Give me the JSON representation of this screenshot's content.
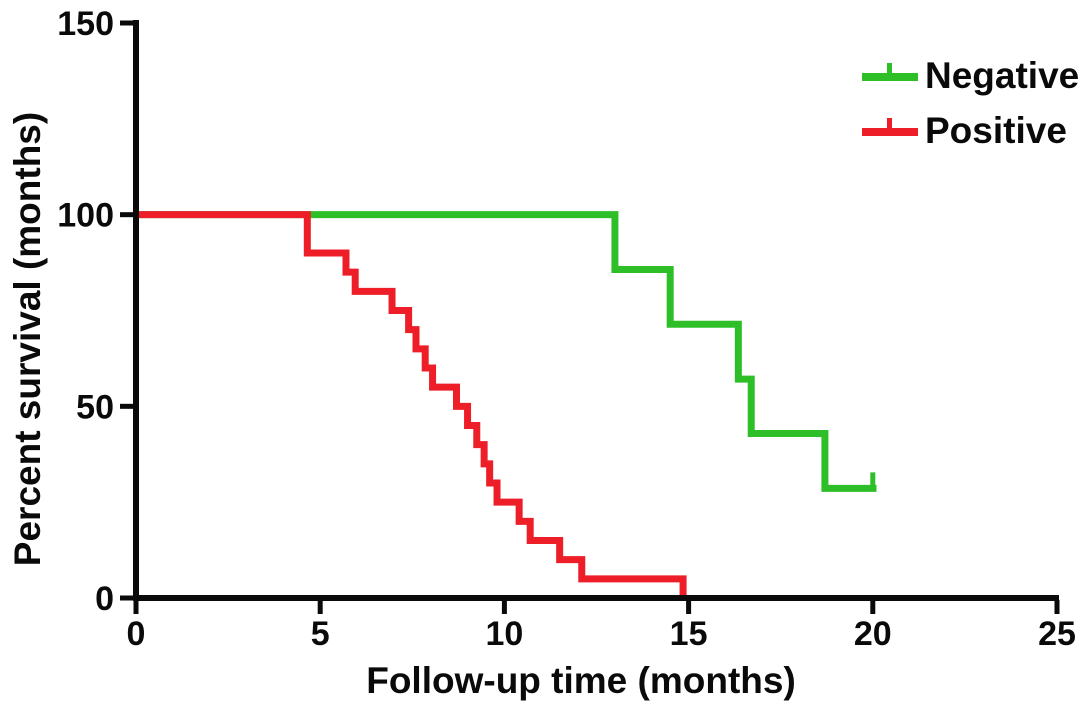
{
  "chart_data": {
    "type": "line",
    "variant": "kaplan-meier-step",
    "title": "",
    "xlabel": "Follow-up time (months)",
    "ylabel": "Percent survival (months)",
    "xlim": [
      0,
      25
    ],
    "ylim": [
      0,
      150
    ],
    "x_ticks": [
      0,
      5,
      10,
      15,
      20,
      25
    ],
    "y_ticks": [
      0,
      50,
      100,
      150
    ],
    "grid": false,
    "axis_color": "#0a0a0a",
    "legend": {
      "position": "top-right",
      "entries": [
        {
          "label": "Negative",
          "color": "#2dbe28",
          "marker": "line-with-censor-tick"
        },
        {
          "label": "Positive",
          "color": "#ed1e28",
          "marker": "line-with-censor-tick"
        }
      ]
    },
    "series": [
      {
        "name": "Negative",
        "color": "#2dbe28",
        "steps": [
          [
            0,
            100
          ],
          [
            13,
            100
          ],
          [
            13,
            85.7
          ],
          [
            14.5,
            85.7
          ],
          [
            14.5,
            71.4
          ],
          [
            16.35,
            71.4
          ],
          [
            16.35,
            57.1
          ],
          [
            16.7,
            57.1
          ],
          [
            16.7,
            42.9
          ],
          [
            18.7,
            42.9
          ],
          [
            18.7,
            28.6
          ],
          [
            20.1,
            28.6
          ]
        ],
        "censor_marks": [
          [
            20,
            28.6
          ]
        ]
      },
      {
        "name": "Positive",
        "color": "#ed1e28",
        "steps": [
          [
            0,
            100
          ],
          [
            4.65,
            100
          ],
          [
            4.65,
            90
          ],
          [
            5.7,
            90
          ],
          [
            5.7,
            85
          ],
          [
            5.95,
            85
          ],
          [
            5.95,
            80
          ],
          [
            6.95,
            80
          ],
          [
            6.95,
            75
          ],
          [
            7.4,
            75
          ],
          [
            7.4,
            70
          ],
          [
            7.6,
            70
          ],
          [
            7.6,
            65
          ],
          [
            7.85,
            65
          ],
          [
            7.85,
            60
          ],
          [
            8.05,
            60
          ],
          [
            8.05,
            55
          ],
          [
            8.7,
            55
          ],
          [
            8.7,
            50
          ],
          [
            9,
            50
          ],
          [
            9,
            45
          ],
          [
            9.25,
            45
          ],
          [
            9.25,
            40
          ],
          [
            9.45,
            40
          ],
          [
            9.45,
            35
          ],
          [
            9.6,
            35
          ],
          [
            9.6,
            30
          ],
          [
            9.8,
            30
          ],
          [
            9.8,
            25
          ],
          [
            10.4,
            25
          ],
          [
            10.4,
            20
          ],
          [
            10.7,
            20
          ],
          [
            10.7,
            15
          ],
          [
            11.5,
            15
          ],
          [
            11.5,
            10
          ],
          [
            12.1,
            10
          ],
          [
            12.1,
            5
          ],
          [
            14.85,
            5
          ],
          [
            14.85,
            0
          ]
        ],
        "censor_marks": []
      }
    ]
  }
}
